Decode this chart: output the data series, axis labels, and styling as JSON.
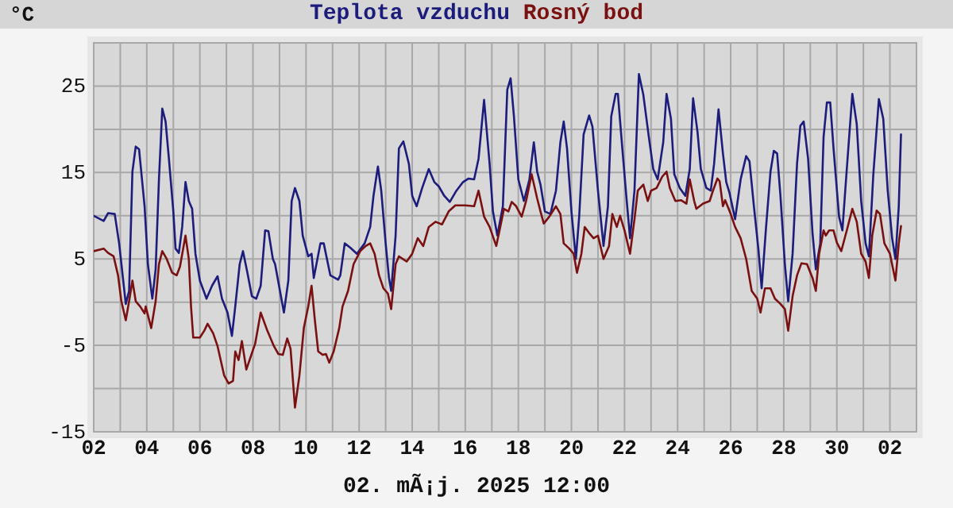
{
  "chart_data": {
    "type": "line",
    "ylabel": "°C",
    "annotations": [
      "02. mÃ¡j. 2025 12:00"
    ],
    "legend": "top",
    "grid": true,
    "marker": "none",
    "line_style": "solid",
    "xlim": [
      "2025-04-02",
      "2025-05-03"
    ],
    "ylim": [
      -15,
      30
    ],
    "xticks": [
      {
        "value": "2025-04-02",
        "label": "02"
      },
      {
        "value": "2025-04-03",
        "label": null
      },
      {
        "value": "2025-04-04",
        "label": "04"
      },
      {
        "value": "2025-04-05",
        "label": null
      },
      {
        "value": "2025-04-06",
        "label": "06"
      },
      {
        "value": "2025-04-07",
        "label": null
      },
      {
        "value": "2025-04-08",
        "label": "08"
      },
      {
        "value": "2025-04-09",
        "label": null
      },
      {
        "value": "2025-04-10",
        "label": "10"
      },
      {
        "value": "2025-04-11",
        "label": null
      },
      {
        "value": "2025-04-12",
        "label": "12"
      },
      {
        "value": "2025-04-13",
        "label": null
      },
      {
        "value": "2025-04-14",
        "label": "14"
      },
      {
        "value": "2025-04-15",
        "label": null
      },
      {
        "value": "2025-04-16",
        "label": "16"
      },
      {
        "value": "2025-04-17",
        "label": null
      },
      {
        "value": "2025-04-18",
        "label": "18"
      },
      {
        "value": "2025-04-19",
        "label": null
      },
      {
        "value": "2025-04-20",
        "label": "20"
      },
      {
        "value": "2025-04-21",
        "label": null
      },
      {
        "value": "2025-04-22",
        "label": "22"
      },
      {
        "value": "2025-04-23",
        "label": null
      },
      {
        "value": "2025-04-24",
        "label": "24"
      },
      {
        "value": "2025-04-25",
        "label": null
      },
      {
        "value": "2025-04-26",
        "label": "26"
      },
      {
        "value": "2025-04-27",
        "label": null
      },
      {
        "value": "2025-04-28",
        "label": "28"
      },
      {
        "value": "2025-04-29",
        "label": null
      },
      {
        "value": "2025-04-30",
        "label": "30"
      },
      {
        "value": "2025-05-01",
        "label": null
      },
      {
        "value": "2025-05-02",
        "label": "02"
      }
    ],
    "yticks": [
      -15,
      {
        "value": -10,
        "label": null
      },
      -5,
      {
        "value": 0,
        "label": null
      },
      5,
      {
        "value": 10,
        "label": null
      },
      15,
      {
        "value": 20,
        "label": null
      },
      25
    ],
    "series": [
      {
        "name": "Teplota vzduchu",
        "color": "#1c1c7c",
        "x": [
          "2025-04-02T00:00",
          "2025-04-02T09:00",
          "2025-04-02T13:00",
          "2025-04-02T19:00",
          "2025-04-02T23:00",
          "2025-04-03T05:00",
          "2025-04-03T08:00",
          "2025-04-03T11:00",
          "2025-04-03T14:00",
          "2025-04-03T17:00",
          "2025-04-03T22:00",
          "2025-04-04T01:00",
          "2025-04-04T05:00",
          "2025-04-04T08:00",
          "2025-04-04T11:00",
          "2025-04-04T14:00",
          "2025-04-04T17:00",
          "2025-04-04T20:00",
          "2025-04-05T00:00",
          "2025-04-05T02:00",
          "2025-04-05T05:00",
          "2025-04-05T08:00",
          "2025-04-05T11:00",
          "2025-04-05T14:00",
          "2025-04-05T17:00",
          "2025-04-05T20:00",
          "2025-04-06T00:00",
          "2025-04-06T06:00",
          "2025-04-06T11:00",
          "2025-04-06T16:00",
          "2025-04-06T20:00",
          "2025-04-07T01:00",
          "2025-04-07T05:00",
          "2025-04-07T08:00",
          "2025-04-07T12:00",
          "2025-04-07T15:00",
          "2025-04-07T19:00",
          "2025-04-07T23:00",
          "2025-04-08T03:00",
          "2025-04-08T07:00",
          "2025-04-08T11:00",
          "2025-04-08T14:00",
          "2025-04-08T18:00",
          "2025-04-08T20:00",
          "2025-04-09T04:00",
          "2025-04-09T08:00",
          "2025-04-09T11:00",
          "2025-04-09T14:00",
          "2025-04-09T18:00",
          "2025-04-09T21:00",
          "2025-04-10T02:00",
          "2025-04-10T05:00",
          "2025-04-10T07:00",
          "2025-04-10T13:00",
          "2025-04-10T16:00",
          "2025-04-10T22:00",
          "2025-04-11T05:00",
          "2025-04-11T07:00",
          "2025-04-11T11:00",
          "2025-04-11T16:00",
          "2025-04-11T22:00",
          "2025-04-12T05:00",
          "2025-04-12T10:00",
          "2025-04-12T13:00",
          "2025-04-12T17:00",
          "2025-04-12T20:00",
          "2025-04-13T00:00",
          "2025-04-13T03:00",
          "2025-04-13T05:00",
          "2025-04-13T09:00",
          "2025-04-13T12:00",
          "2025-04-13T16:00",
          "2025-04-13T21:00",
          "2025-04-14T00:00",
          "2025-04-14T04:00",
          "2025-04-14T09:00",
          "2025-04-14T15:00",
          "2025-04-14T20:00",
          "2025-04-15T00:00",
          "2025-04-15T05:00",
          "2025-04-15T10:00",
          "2025-04-15T16:00",
          "2025-04-15T22:00",
          "2025-04-16T03:00",
          "2025-04-16T08:00",
          "2025-04-16T12:00",
          "2025-04-16T17:00",
          "2025-04-16T22:00",
          "2025-04-17T01:00",
          "2025-04-17T05:00",
          "2025-04-17T10:00",
          "2025-04-17T14:00",
          "2025-04-17T17:00",
          "2025-04-17T20:00",
          "2025-04-18T00:00",
          "2025-04-18T05:00",
          "2025-04-18T10:00",
          "2025-04-18T14:00",
          "2025-04-18T17:00",
          "2025-04-18T20:00",
          "2025-04-19T00:00",
          "2025-04-19T05:00",
          "2025-04-19T10:00",
          "2025-04-19T14:00",
          "2025-04-19T17:00",
          "2025-04-19T20:00",
          "2025-04-20T00:00",
          "2025-04-20T04:00",
          "2025-04-20T07:00",
          "2025-04-20T11:00",
          "2025-04-20T16:00",
          "2025-04-20T19:00",
          "2025-04-21T00:00",
          "2025-04-21T05:00",
          "2025-04-21T09:00",
          "2025-04-21T12:00",
          "2025-04-21T16:00",
          "2025-04-21T18:00",
          "2025-04-21T22:00",
          "2025-04-22T02:00",
          "2025-04-22T05:00",
          "2025-04-22T09:00",
          "2025-04-22T13:00",
          "2025-04-22T17:00",
          "2025-04-22T22:00",
          "2025-04-23T02:00",
          "2025-04-23T06:00",
          "2025-04-23T11:00",
          "2025-04-23T14:00",
          "2025-04-23T18:00",
          "2025-04-23T21:00",
          "2025-04-24T02:00",
          "2025-04-24T07:00",
          "2025-04-24T11:00",
          "2025-04-24T14:00",
          "2025-04-24T18:00",
          "2025-04-24T21:00",
          "2025-04-25T02:00",
          "2025-04-25T06:00",
          "2025-04-25T09:00",
          "2025-04-25T13:00",
          "2025-04-25T17:00",
          "2025-04-25T20:00",
          "2025-04-25T23:00",
          "2025-04-26T04:00",
          "2025-04-26T09:00",
          "2025-04-26T14:00",
          "2025-04-26T17:00",
          "2025-04-26T21:00",
          "2025-04-27T01:00",
          "2025-04-27T04:00",
          "2025-04-27T08:00",
          "2025-04-27T12:00",
          "2025-04-27T15:00",
          "2025-04-27T18:00",
          "2025-04-27T21:00",
          "2025-04-28T01:00",
          "2025-04-28T04:00",
          "2025-04-28T08:00",
          "2025-04-28T12:00",
          "2025-04-28T15:00",
          "2025-04-28T18:00",
          "2025-04-28T22:00",
          "2025-04-29T02:00",
          "2025-04-29T05:00",
          "2025-04-29T09:00",
          "2025-04-29T12:00",
          "2025-04-29T15:00",
          "2025-04-29T18:00",
          "2025-04-29T21:00",
          "2025-04-30T02:00",
          "2025-04-30T05:00",
          "2025-04-30T09:00",
          "2025-04-30T14:00",
          "2025-04-30T18:00",
          "2025-04-30T22:00",
          "2025-05-01T02:00",
          "2025-05-01T05:00",
          "2025-05-01T09:00",
          "2025-05-01T14:00",
          "2025-05-01T18:00",
          "2025-05-01T22:00",
          "2025-05-02T02:00",
          "2025-05-02T05:00",
          "2025-05-02T08:00",
          "2025-05-02T10:00"
        ],
        "values": [
          10,
          9.4,
          10.3,
          10.2,
          6.8,
          -0.2,
          1.3,
          15.1,
          18,
          17.7,
          11.1,
          4.4,
          0.4,
          3.8,
          14.2,
          22.4,
          20.9,
          16.6,
          10.5,
          6.2,
          5.7,
          8.7,
          13.9,
          11.7,
          10.8,
          5.6,
          2.5,
          0.4,
          1.9,
          3,
          0.4,
          -1.2,
          -3.9,
          -0.5,
          4.4,
          5.9,
          3.4,
          0.7,
          0.4,
          1.9,
          8.3,
          8.2,
          5,
          4.4,
          -1.2,
          2.5,
          11.7,
          13.2,
          11.7,
          7.7,
          5.3,
          5.6,
          2.8,
          6.8,
          6.8,
          3.1,
          2.6,
          3.1,
          6.8,
          6.3,
          5.6,
          6.8,
          8.7,
          12.3,
          15.7,
          12.9,
          6.8,
          2.8,
          1.3,
          7.7,
          17.8,
          18.6,
          16,
          12.3,
          11.1,
          13.2,
          15.4,
          13.9,
          13.4,
          12.3,
          11.6,
          12.9,
          13.9,
          14.3,
          14.2,
          16.6,
          23.4,
          16,
          10.5,
          7.7,
          11.1,
          24.6,
          25.9,
          21.5,
          14.2,
          11.7,
          14.2,
          18.5,
          15.1,
          13.6,
          10.5,
          10.2,
          12.9,
          18.5,
          20.9,
          17.8,
          10.5,
          5,
          9.9,
          19.4,
          21.6,
          20.3,
          12.9,
          6.5,
          11.1,
          21.5,
          24.1,
          24.1,
          17.8,
          11.7,
          7.4,
          12.9,
          26.4,
          24,
          19.1,
          15.4,
          14.2,
          18.5,
          24.1,
          21.2,
          14.8,
          13.2,
          12.3,
          15.4,
          23.6,
          19.7,
          15.4,
          13.2,
          12.9,
          16,
          22.3,
          17.2,
          13.9,
          12.6,
          9.6,
          14.2,
          16.9,
          16.3,
          11.1,
          6.2,
          1.6,
          8.7,
          15.1,
          17.5,
          17.2,
          12.3,
          4.4,
          0.1,
          5.6,
          16,
          20.4,
          20.9,
          16.6,
          8,
          3.8,
          6.8,
          19.1,
          23.1,
          23.1,
          17.8,
          9.9,
          8.3,
          15.4,
          24.1,
          20.6,
          11.7,
          6.8,
          5.3,
          14.8,
          23.5,
          21.2,
          12.9,
          7.4,
          5,
          11.1,
          19.4
        ]
      },
      {
        "name": "Rosný bod",
        "color": "#7a1010",
        "x": [
          "2025-04-02T00:00",
          "2025-04-02T09:00",
          "2025-04-02T13:00",
          "2025-04-02T18:00",
          "2025-04-02T22:00",
          "2025-04-03T01:00",
          "2025-04-03T05:00",
          "2025-04-03T08:00",
          "2025-04-03T11:00",
          "2025-04-03T14:00",
          "2025-04-03T18:00",
          "2025-04-03T22:00",
          "2025-04-03T23:00",
          "2025-04-04T04:00",
          "2025-04-04T08:00",
          "2025-04-04T11:00",
          "2025-04-04T14:00",
          "2025-04-04T18:00",
          "2025-04-04T23:00",
          "2025-04-05T03:00",
          "2025-04-05T06:00",
          "2025-04-05T11:00",
          "2025-04-05T14:00",
          "2025-04-05T16:00",
          "2025-04-05T18:00",
          "2025-04-06T00:00",
          "2025-04-06T04:00",
          "2025-04-06T07:00",
          "2025-04-06T12:00",
          "2025-04-06T16:00",
          "2025-04-06T22:00",
          "2025-04-07T02:00",
          "2025-04-07T06:00",
          "2025-04-07T08:00",
          "2025-04-07T11:00",
          "2025-04-07T14:00",
          "2025-04-07T18:00",
          "2025-04-07T22:00",
          "2025-04-08T02:00",
          "2025-04-08T07:00",
          "2025-04-08T13:00",
          "2025-04-08T19:00",
          "2025-04-08T23:00",
          "2025-04-09T03:00",
          "2025-04-09T07:00",
          "2025-04-09T10:00",
          "2025-04-09T14:00",
          "2025-04-09T18:00",
          "2025-04-09T22:00",
          "2025-04-10T02:00",
          "2025-04-10T05:00",
          "2025-04-10T08:00",
          "2025-04-10T11:00",
          "2025-04-10T15:00",
          "2025-04-10T18:00",
          "2025-04-10T21:00",
          "2025-04-11T01:00",
          "2025-04-11T06:00",
          "2025-04-11T09:00",
          "2025-04-11T14:00",
          "2025-04-11T19:00",
          "2025-04-12T01:00",
          "2025-04-12T06:00",
          "2025-04-12T10:00",
          "2025-04-12T14:00",
          "2025-04-12T18:00",
          "2025-04-12T22:00",
          "2025-04-13T02:00",
          "2025-04-13T05:00",
          "2025-04-13T09:00",
          "2025-04-13T12:00",
          "2025-04-13T19:00",
          "2025-04-14T00:00",
          "2025-04-14T05:00",
          "2025-04-14T10:00",
          "2025-04-14T15:00",
          "2025-04-14T21:00",
          "2025-04-15T03:00",
          "2025-04-15T09:00",
          "2025-04-15T15:00",
          "2025-04-16T00:00",
          "2025-04-16T08:00",
          "2025-04-16T12:00",
          "2025-04-16T17:00",
          "2025-04-16T22:00",
          "2025-04-17T04:00",
          "2025-04-17T07:00",
          "2025-04-17T11:00",
          "2025-04-17T15:00",
          "2025-04-17T18:00",
          "2025-04-17T22:00",
          "2025-04-18T03:00",
          "2025-04-18T07:00",
          "2025-04-18T12:00",
          "2025-04-18T17:00",
          "2025-04-18T20:00",
          "2025-04-18T23:00",
          "2025-04-19T04:00",
          "2025-04-19T10:00",
          "2025-04-19T14:00",
          "2025-04-19T17:00",
          "2025-04-19T22:00",
          "2025-04-20T02:00",
          "2025-04-20T05:00",
          "2025-04-20T09:00",
          "2025-04-20T12:00",
          "2025-04-20T16:00",
          "2025-04-20T20:00",
          "2025-04-21T00:00",
          "2025-04-21T05:00",
          "2025-04-21T10:00",
          "2025-04-21T13:00",
          "2025-04-21T17:00",
          "2025-04-21T20:00",
          "2025-04-22T00:00",
          "2025-04-22T05:00",
          "2025-04-22T09:00",
          "2025-04-22T12:00",
          "2025-04-22T17:00",
          "2025-04-22T21:00",
          "2025-04-23T00:00",
          "2025-04-23T05:00",
          "2025-04-23T10:00",
          "2025-04-23T14:00",
          "2025-04-23T17:00",
          "2025-04-23T22:00",
          "2025-04-24T03:00",
          "2025-04-24T08:00",
          "2025-04-24T11:00",
          "2025-04-24T15:00",
          "2025-04-24T17:00",
          "2025-04-24T23:00",
          "2025-04-25T05:00",
          "2025-04-25T08:00",
          "2025-04-25T12:00",
          "2025-04-25T14:00",
          "2025-04-25T17:00",
          "2025-04-25T19:00",
          "2025-04-26T00:00",
          "2025-04-26T04:00",
          "2025-04-26T09:00",
          "2025-04-26T14:00",
          "2025-04-26T19:00",
          "2025-04-27T00:00",
          "2025-04-27T03:00",
          "2025-04-27T07:00",
          "2025-04-27T12:00",
          "2025-04-27T16:00",
          "2025-04-27T21:00",
          "2025-04-28T01:00",
          "2025-04-28T04:00",
          "2025-04-28T08:00",
          "2025-04-28T12:00",
          "2025-04-28T16:00",
          "2025-04-28T21:00",
          "2025-04-29T02:00",
          "2025-04-29T05:00",
          "2025-04-29T08:00",
          "2025-04-29T12:00",
          "2025-04-29T14:00",
          "2025-04-29T17:00",
          "2025-04-29T21:00",
          "2025-04-30T00:00",
          "2025-04-30T04:00",
          "2025-04-30T09:00",
          "2025-04-30T14:00",
          "2025-04-30T18:00",
          "2025-04-30T22:00",
          "2025-05-01T02:00",
          "2025-05-01T05:00",
          "2025-05-01T08:00",
          "2025-05-01T12:00",
          "2025-05-01T15:00",
          "2025-05-01T19:00",
          "2025-05-02T00:00",
          "2025-05-02T05:00",
          "2025-05-02T08:00",
          "2025-05-02T10:00"
        ],
        "values": [
          5.9,
          6.2,
          5.7,
          5.3,
          3.1,
          0.1,
          -2.1,
          0.1,
          2.5,
          0.1,
          -0.5,
          -1.3,
          -0.5,
          -3,
          0.1,
          4.4,
          5.9,
          5,
          3.4,
          3.1,
          4.1,
          7.7,
          5,
          -0.5,
          -4.1,
          -4.1,
          -3.3,
          -2.5,
          -3.6,
          -5.1,
          -8.5,
          -9.4,
          -9.1,
          -5.7,
          -6.7,
          -4.5,
          -7.8,
          -6.3,
          -4.8,
          -1.2,
          -3.3,
          -5.1,
          -6,
          -6.1,
          -4.2,
          -5.4,
          -12.2,
          -8.5,
          -3,
          -0.5,
          1.9,
          -2.1,
          -5.7,
          -6.1,
          -6,
          -7,
          -5.7,
          -3,
          -0.5,
          1.3,
          4.4,
          5.9,
          6.5,
          6.8,
          5.6,
          3.1,
          1.6,
          1,
          -0.8,
          4.4,
          5.3,
          4.7,
          5.6,
          7.4,
          6.5,
          8.7,
          9.3,
          9,
          10.5,
          11.2,
          11.2,
          11.1,
          12.9,
          9.9,
          8.7,
          6.5,
          8.3,
          10.8,
          10.5,
          11.6,
          11.1,
          9.9,
          11.7,
          14.8,
          12,
          10.5,
          9.1,
          9.9,
          11.1,
          10.2,
          6.8,
          6.2,
          5.6,
          3.4,
          5.6,
          8.7,
          8,
          7.4,
          7.7,
          5,
          6.5,
          10.2,
          8.7,
          10,
          8.3,
          5.6,
          9.6,
          12.9,
          13.6,
          11.7,
          12.9,
          13.2,
          14.5,
          15.1,
          13.2,
          11.7,
          11.8,
          11.4,
          14.2,
          11.7,
          10.8,
          11.4,
          11.7,
          12.9,
          14.3,
          14,
          11.1,
          11.8,
          10.2,
          8.7,
          7.4,
          5,
          1.3,
          0.4,
          -1.2,
          1.6,
          1.6,
          0.4,
          -0.2,
          -0.8,
          -3.3,
          0.7,
          3.1,
          4.5,
          4.4,
          2.8,
          1.3,
          5.6,
          8.3,
          7.7,
          8.3,
          8.3,
          6.9,
          5.9,
          8.3,
          10.8,
          9.3,
          5.6,
          4.7,
          2.8,
          7.7,
          10.6,
          10.2,
          6.8,
          5.6,
          2.5,
          6.8,
          8.8
        ]
      }
    ]
  }
}
